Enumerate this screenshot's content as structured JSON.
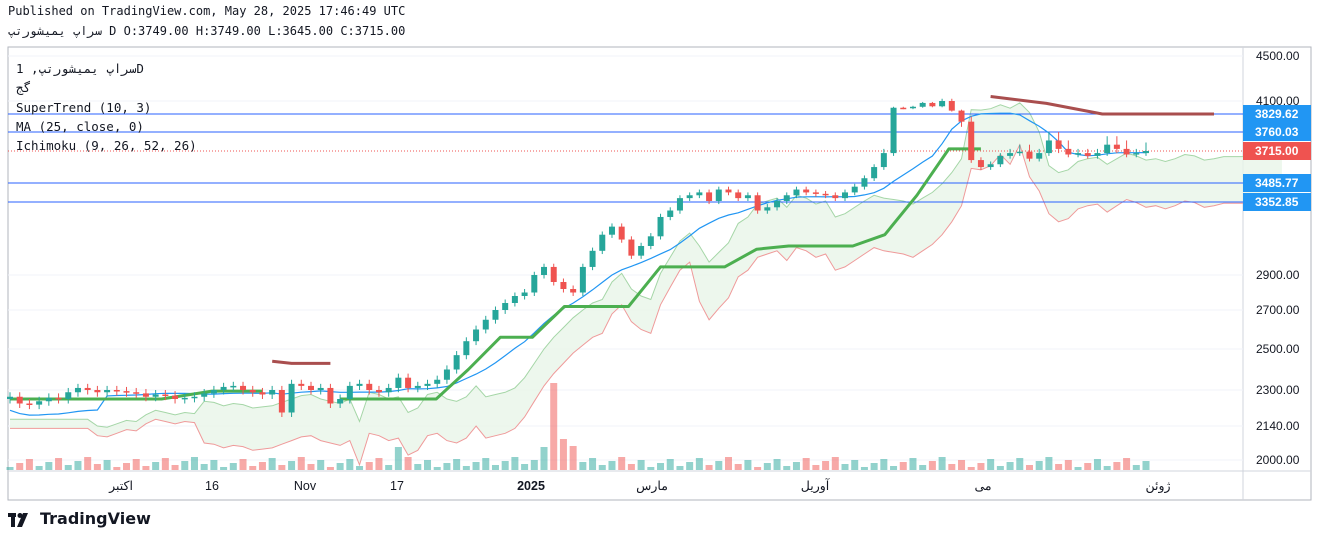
{
  "header": {
    "published": "Published on TradingView.com, May 28, 2025 17:46:49 UTC",
    "ohlc": "سراپ یمیشورتپ D O:3749.00 H:3749.00 L:3645.00 C:3715.00"
  },
  "legend": {
    "symbol": "سراپ یمیشورتپ, 1D",
    "exchange": "گج",
    "supertrend": "SuperTrend (10, 3)",
    "ma": "MA (25, close, 0)",
    "ichimoku": "Ichimoku (9, 26, 52, 26)"
  },
  "branding": {
    "logo_text": "TradingView",
    "logo_icon": "tradingview-logo-icon"
  },
  "colors": {
    "up": "#26a69a",
    "down": "#ef5350",
    "supertrend_up": "#4caf50",
    "supertrend_down": "#a94e4e",
    "ma": "#2196f3",
    "cloud_bull": "#e8f5e9",
    "cloud_bear": "#fde8e8",
    "price_line": "#2962ff",
    "badge": "#2196f3",
    "last_badge": "#ef5350"
  },
  "chart_data": {
    "type": "candlestick",
    "interval": "1D",
    "x_tick_labels": [
      "اکتبر",
      "16",
      "Nov",
      "17",
      "2025",
      "مارس",
      "آوریل",
      "می",
      "ژوئن"
    ],
    "y_tick_labels": [
      4500.0,
      4100.0,
      2900.0,
      2700.0,
      2500.0,
      2300.0,
      2140.0,
      2000.0
    ],
    "ylim": [
      1960,
      4560
    ],
    "price_levels": [
      {
        "label": "3829.62",
        "value": 3829.62
      },
      {
        "label": "3760.03",
        "value": 3760.03
      },
      {
        "label": "3485.77",
        "value": 3485.77
      },
      {
        "label": "3352.85",
        "value": 3352.85
      }
    ],
    "last_price": {
      "label": "3715.00",
      "value": 3715.0
    },
    "ohlc_approx": [
      2270,
      2240,
      2235,
      2250,
      2265,
      2260,
      2290,
      2310,
      2300,
      2290,
      2300,
      2295,
      2290,
      2285,
      2270,
      2280,
      2275,
      2260,
      2265,
      2270,
      2285,
      2300,
      2315,
      2320,
      2300,
      2290,
      2280,
      2300,
      2200,
      2330,
      2320,
      2300,
      2310,
      2240,
      2260,
      2320,
      2330,
      2300,
      2290,
      2310,
      2360,
      2310,
      2320,
      2330,
      2350,
      2400,
      2470,
      2540,
      2600,
      2650,
      2700,
      2740,
      2780,
      2800,
      2900,
      2950,
      2860,
      2820,
      2800,
      2950,
      3050,
      3150,
      3200,
      3120,
      3020,
      3080,
      3140,
      3260,
      3300,
      3380,
      3400,
      3420,
      3360,
      3440,
      3420,
      3380,
      3400,
      3300,
      3320,
      3360,
      3400,
      3440,
      3420,
      3410,
      3400,
      3380,
      3420,
      3460,
      3520,
      3600,
      3700,
      3960,
      3950,
      3980,
      4060,
      3990,
      4100,
      3900,
      3800,
      3650,
      3600,
      3620,
      3680,
      3700,
      3710,
      3660,
      3700,
      3740,
      3720,
      3690,
      3700,
      3680,
      3700,
      3730,
      3720,
      3690,
      3700,
      3715
    ],
    "supertrend_segments": [
      {
        "trend": "up",
        "values": [
          2260,
          2260,
          2260,
          2260,
          2295,
          2295
        ]
      },
      {
        "trend": "down",
        "values": [
          2440,
          2430,
          2430,
          2430
        ]
      },
      {
        "trend": "up",
        "values": [
          2260,
          2260,
          2260,
          2260,
          2400,
          2560,
          2560,
          2720,
          2720,
          2720,
          2950,
          2950,
          2950,
          3060,
          3080,
          3080,
          3080,
          3150,
          3400,
          3720,
          3720
        ]
      },
      {
        "trend": "down",
        "values": [
          4140,
          4050,
          3830,
          3830,
          3830
        ]
      }
    ],
    "volume_note": "volume histogram bars, colored by candle direction"
  }
}
